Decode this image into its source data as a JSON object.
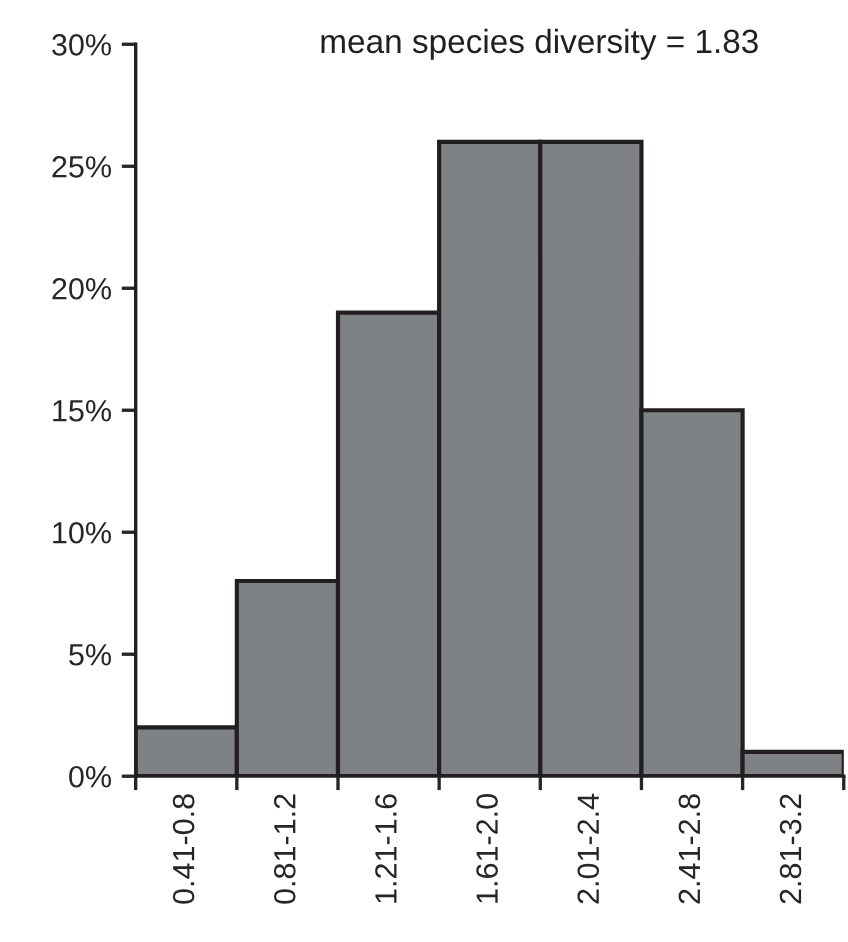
{
  "chart_data": {
    "type": "bar",
    "categories": [
      "0.41-0.8",
      "0.81-1.2",
      "1.21-1.6",
      "1.61-2.0",
      "2.01-2.4",
      "2.41-2.8",
      "2.81-3.2"
    ],
    "values": [
      2,
      8,
      19,
      26,
      26,
      15,
      1
    ],
    "color": "#7f8285",
    "ylim": [
      0,
      30
    ],
    "yticks": [
      {
        "value": 0,
        "label": "0%"
      },
      {
        "value": 5,
        "label": "5%"
      },
      {
        "value": 10,
        "label": "10%"
      },
      {
        "value": 15,
        "label": "15%"
      },
      {
        "value": 20,
        "label": "20%"
      },
      {
        "value": 25,
        "label": "25%"
      },
      {
        "value": 30,
        "label": "30%"
      }
    ],
    "annotations": [
      "mean species diversity = 1.83"
    ],
    "grid": false,
    "legend": false
  }
}
